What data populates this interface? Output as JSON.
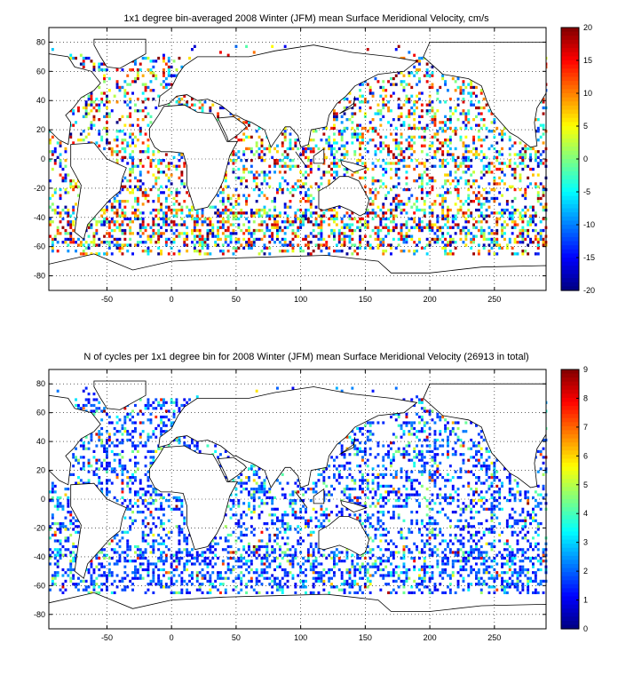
{
  "chart_data": [
    {
      "type": "heatmap",
      "title": "1x1 degree bin-averaged 2008 Winter (JFM) mean Surface Meridional Velocity, cm/s",
      "xlim": [
        -95,
        290
      ],
      "ylim": [
        -90,
        90
      ],
      "xticks": [
        "-50",
        "0",
        "50",
        "100",
        "150",
        "200",
        "250"
      ],
      "xtick_values": [
        -50,
        0,
        50,
        100,
        150,
        200,
        250
      ],
      "yticks": [
        "80",
        "60",
        "40",
        "20",
        "0",
        "-20",
        "-40",
        "-60",
        "-80"
      ],
      "ytick_values": [
        80,
        60,
        40,
        20,
        0,
        -20,
        -40,
        -60,
        -80
      ],
      "grid": true,
      "colorbar": {
        "range": [
          -20,
          20
        ],
        "ticks": [
          "20",
          "15",
          "10",
          "5",
          "0",
          "-5",
          "-10",
          "-15",
          "-20"
        ],
        "tick_values": [
          20,
          15,
          10,
          5,
          0,
          -5,
          -10,
          -15,
          -20
        ],
        "colormap": "jet"
      }
    },
    {
      "type": "heatmap",
      "title": "N of cycles per 1x1 degree bin for 2008 Winter (JFM) mean Surface Meridional Velocity (26913 in total)",
      "xlim": [
        -95,
        290
      ],
      "ylim": [
        -90,
        90
      ],
      "xticks": [
        "-50",
        "0",
        "50",
        "100",
        "150",
        "200",
        "250"
      ],
      "xtick_values": [
        -50,
        0,
        50,
        100,
        150,
        200,
        250
      ],
      "yticks": [
        "80",
        "60",
        "40",
        "20",
        "0",
        "-20",
        "-40",
        "-60",
        "-80"
      ],
      "ytick_values": [
        80,
        60,
        40,
        20,
        0,
        -20,
        -40,
        -60,
        -80
      ],
      "grid": true,
      "colorbar": {
        "range": [
          0,
          9
        ],
        "ticks": [
          "9",
          "8",
          "7",
          "6",
          "5",
          "4",
          "3",
          "2",
          "1",
          "0"
        ],
        "tick_values": [
          9,
          8,
          7,
          6,
          5,
          4,
          3,
          2,
          1,
          0
        ],
        "colormap": "jet"
      }
    }
  ]
}
